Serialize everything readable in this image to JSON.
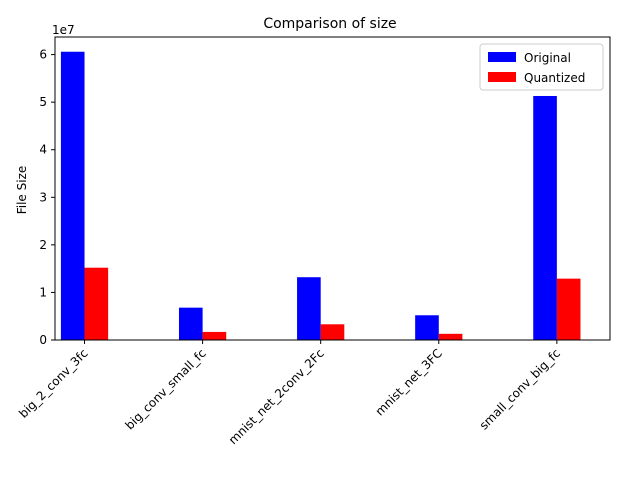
{
  "chart_data": {
    "type": "bar",
    "title": "Comparison of size",
    "xlabel": "",
    "ylabel": "File Size",
    "y_offset_label": "1e7",
    "y_scale": 10000000,
    "ylim": [
      0,
      63700000
    ],
    "yticks": [
      0,
      10000000,
      20000000,
      30000000,
      40000000,
      50000000,
      60000000
    ],
    "ytick_labels": [
      "0",
      "1",
      "2",
      "3",
      "4",
      "5",
      "6"
    ],
    "categories": [
      "big_2_conv_3fc",
      "big_conv_small_fc",
      "mnist_net_2conv_2Fc",
      "mnist_net_3FC",
      "small_conv_big_fc"
    ],
    "series": [
      {
        "name": "Original",
        "color": "#0000ff",
        "values": [
          60600000,
          6800000,
          13200000,
          5200000,
          51300000
        ]
      },
      {
        "name": "Quantized",
        "color": "#ff0000",
        "values": [
          15200000,
          1700000,
          3300000,
          1300000,
          12900000
        ]
      }
    ],
    "grid": false,
    "legend_position": "top-right"
  }
}
